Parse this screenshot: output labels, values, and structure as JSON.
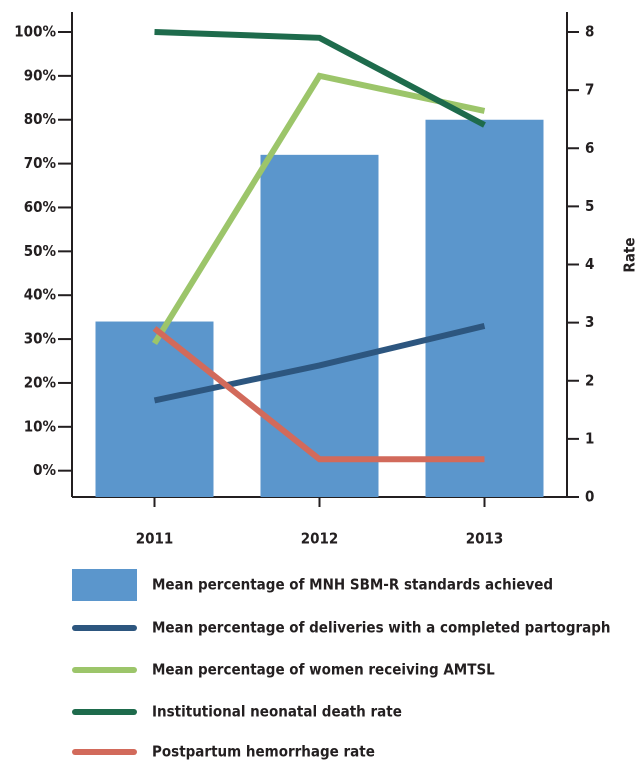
{
  "chart_data": {
    "type": "bar",
    "categories": [
      "2011",
      "2012",
      "2013"
    ],
    "ylim": [
      -6,
      100
    ],
    "yticks": [
      {
        "value": 0,
        "label": "0%"
      },
      {
        "value": 10,
        "label": "10%"
      },
      {
        "value": 20,
        "label": "20%"
      },
      {
        "value": 30,
        "label": "30%"
      },
      {
        "value": 40,
        "label": "40%"
      },
      {
        "value": 50,
        "label": "50%"
      },
      {
        "value": 60,
        "label": "60%"
      },
      {
        "value": 70,
        "label": "70%"
      },
      {
        "value": 80,
        "label": "80%"
      },
      {
        "value": 90,
        "label": "90%"
      },
      {
        "value": 100,
        "label": "100%"
      }
    ],
    "y2lim": [
      0,
      8
    ],
    "y2ticks": [
      0,
      1,
      2,
      3,
      4,
      5,
      6,
      7,
      8
    ],
    "y2label": "Rate",
    "series": [
      {
        "name": "Mean percentage of MNH SBM-R standards achieved",
        "type": "bar",
        "color": "#5b96cc",
        "values": [
          34,
          72,
          80
        ]
      },
      {
        "name": "Mean percentage of deliveries with a completed partograph",
        "type": "line",
        "color": "#2d567f",
        "values": [
          16,
          24,
          33
        ]
      },
      {
        "name": "Mean percentage of women receiving AMTSL",
        "type": "line",
        "color": "#9cc56a",
        "values": [
          29,
          90,
          82
        ]
      },
      {
        "name": "Institutional neonatal death rate",
        "type": "line",
        "axis": "y2",
        "color": "#1e6b4c",
        "values": [
          8,
          7.9,
          6.4
        ]
      },
      {
        "name": "Postpartum hemorrhage rate",
        "type": "line",
        "axis": "y2",
        "color": "#d26a5b",
        "values": [
          2.9,
          0.65,
          0.65
        ]
      }
    ]
  }
}
